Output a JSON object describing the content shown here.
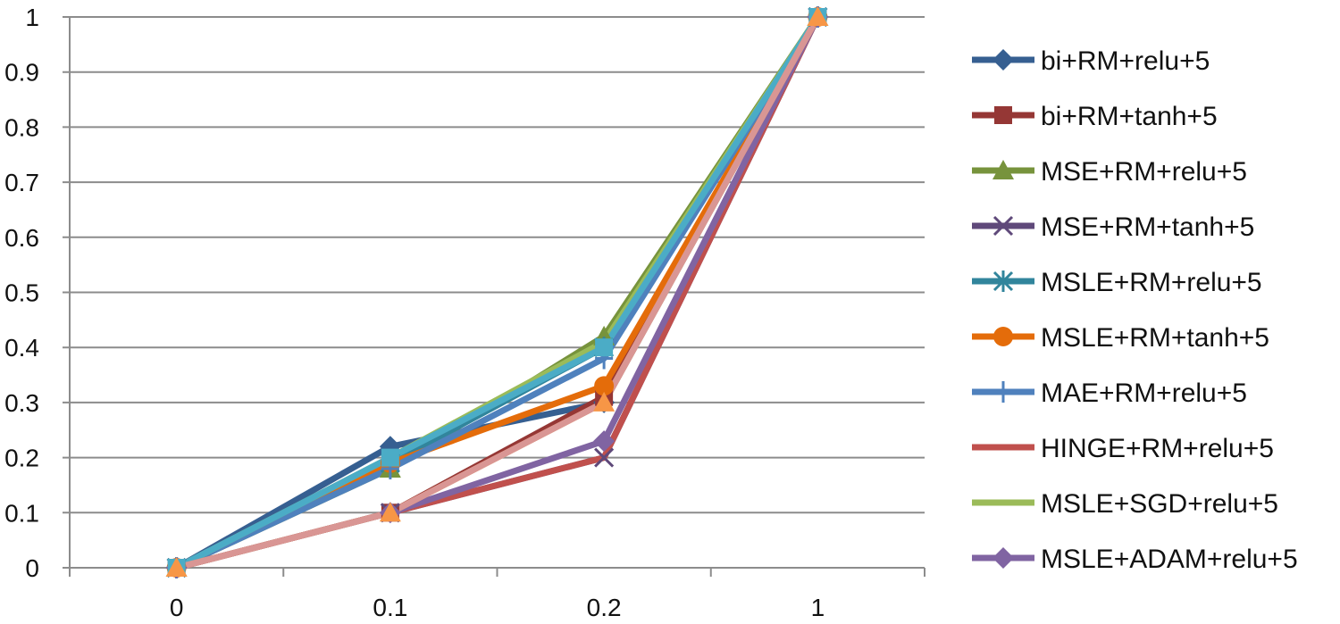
{
  "chart_data": {
    "type": "line",
    "title": "",
    "xlabel": "",
    "ylabel": "",
    "categories": [
      "0",
      "0.1",
      "0.2",
      "1"
    ],
    "ylim": [
      0,
      1
    ],
    "yticks": [
      "0",
      "0.1",
      "0.2",
      "0.3",
      "0.4",
      "0.5",
      "0.6",
      "0.7",
      "0.8",
      "0.9",
      "1"
    ],
    "grid": true,
    "legend_position": "right",
    "series": [
      {
        "name": "bi+RM+relu+5",
        "values": [
          0,
          0.22,
          0.3,
          1
        ],
        "color": "#365f91",
        "marker": "diamond"
      },
      {
        "name": "bi+RM+tanh+5",
        "values": [
          0,
          0.1,
          0.31,
          1
        ],
        "color": "#953735",
        "marker": "square"
      },
      {
        "name": "MSE+RM+relu+5",
        "values": [
          0,
          0.18,
          0.42,
          1
        ],
        "color": "#77933c",
        "marker": "triangle"
      },
      {
        "name": "MSE+RM+tanh+5",
        "values": [
          0,
          0.1,
          0.2,
          1
        ],
        "color": "#5f497a",
        "marker": "x"
      },
      {
        "name": "MSLE+RM+relu+5",
        "values": [
          0,
          0.19,
          0.4,
          1
        ],
        "color": "#31859c",
        "marker": "star"
      },
      {
        "name": "MSLE+RM+tanh+5",
        "values": [
          0,
          0.19,
          0.33,
          1
        ],
        "color": "#e46c0a",
        "marker": "circle"
      },
      {
        "name": "MAE+RM+relu+5",
        "values": [
          0,
          0.18,
          0.38,
          1
        ],
        "color": "#4f81bd",
        "marker": "plus"
      },
      {
        "name": "HINGE+RM+relu+5",
        "values": [
          0,
          0.1,
          0.2,
          1
        ],
        "color": "#c0504d",
        "marker": "none"
      },
      {
        "name": "MSLE+SGD+relu+5",
        "values": [
          0,
          0.2,
          0.41,
          1
        ],
        "color": "#9bbb59",
        "marker": "none"
      },
      {
        "name": "MSLE+ADAM+relu+5",
        "values": [
          0,
          0.1,
          0.23,
          1
        ],
        "color": "#8064a2",
        "marker": "diamond"
      },
      {
        "name": "",
        "values": [
          0,
          0.2,
          0.4,
          1
        ],
        "color": "#4bacc6",
        "marker": "square"
      },
      {
        "name": "",
        "values": [
          0,
          0.1,
          0.3,
          1
        ],
        "color": "#f79646",
        "marker": "triangle"
      },
      {
        "name": "",
        "values": [
          0,
          0.1,
          0.3,
          1
        ],
        "color": "#d99694",
        "marker": "none"
      }
    ]
  }
}
